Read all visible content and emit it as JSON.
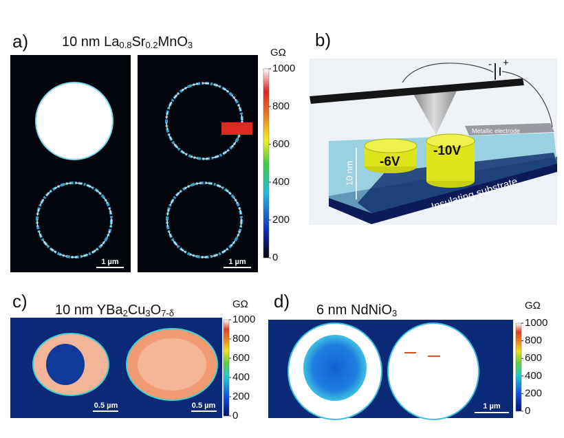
{
  "panels": [
    {
      "label": "a)",
      "title": [
        "10 nm La",
        "0.8",
        "Sr",
        "0.2",
        "MnO",
        "3"
      ],
      "colorbar": {
        "unit": "GΩ",
        "range": [
          0,
          1000
        ],
        "ticks": [
          0,
          200,
          400,
          600,
          800,
          1000
        ]
      },
      "scale_bars": [
        "1 µm",
        "1 µm"
      ]
    },
    {
      "label": "b)",
      "diagram": {
        "voltages": [
          "-6V",
          "-10V"
        ],
        "electrode": "Metallic electrode",
        "thickness": "10 nm",
        "substrate": "Insulating substrate",
        "battery": [
          "-",
          "+"
        ]
      }
    },
    {
      "label": "c)",
      "title": [
        "10 nm YBa",
        "2",
        "Cu",
        "3",
        "O",
        "7-δ"
      ],
      "colorbar": {
        "unit": "GΩ",
        "range": [
          0,
          1000
        ],
        "ticks": [
          0,
          200,
          400,
          600,
          800,
          1000
        ]
      },
      "scale_bars": [
        "0.5 µm",
        "0.5 µm"
      ]
    },
    {
      "label": "d)",
      "title": [
        "6 nm NdNiO",
        "3"
      ],
      "colorbar": {
        "unit": "GΩ",
        "range": [
          0,
          1000
        ],
        "ticks": [
          0,
          200,
          400,
          600,
          800,
          1000
        ]
      },
      "scale_bars": [
        "1 µm"
      ]
    }
  ]
}
